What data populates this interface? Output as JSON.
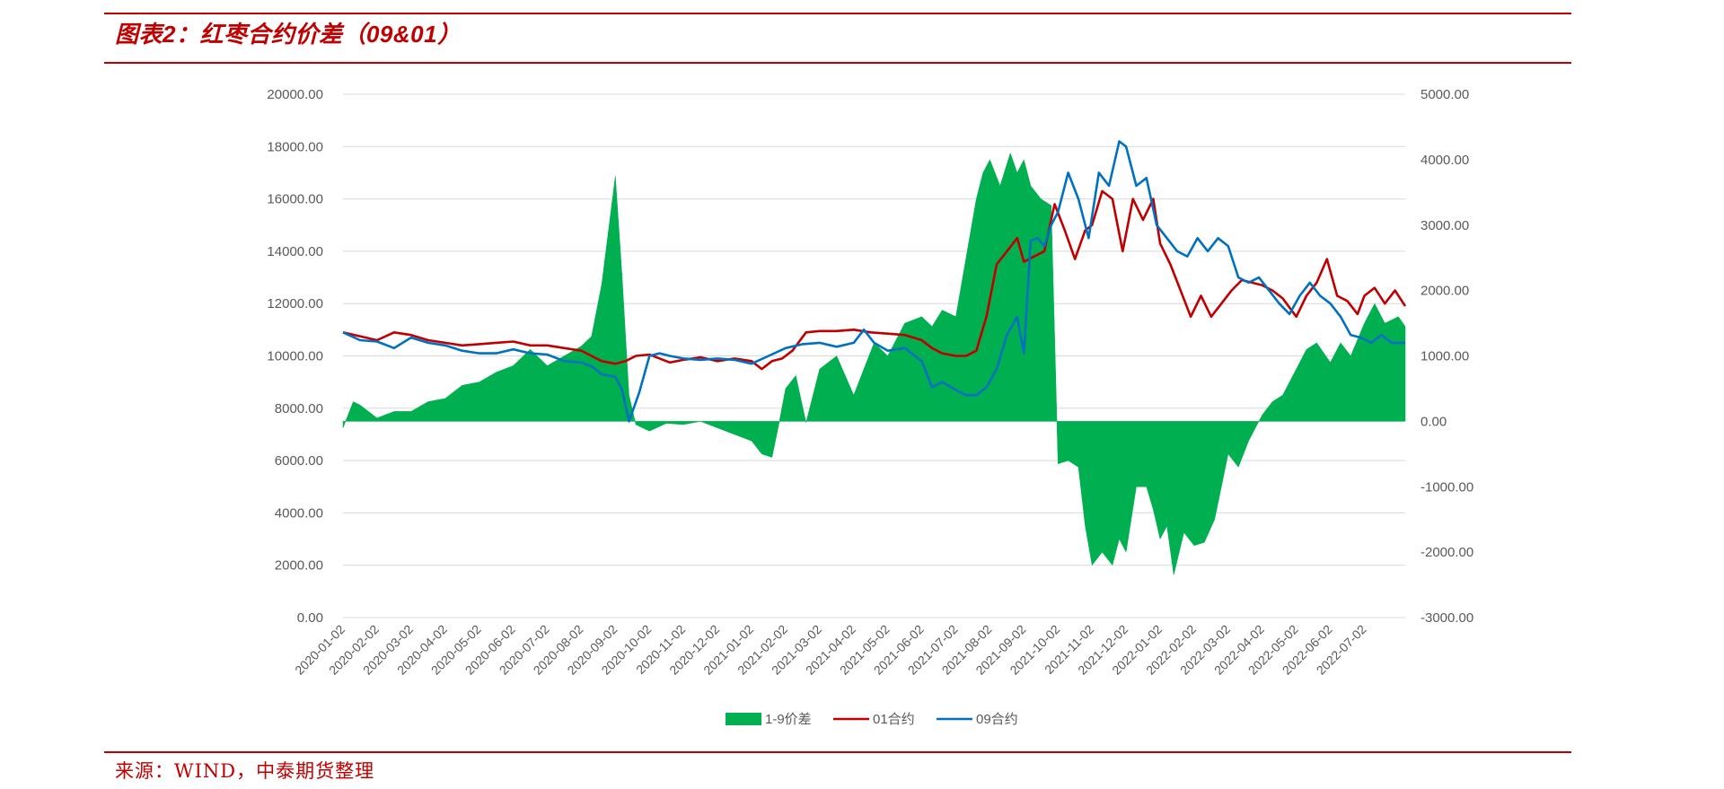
{
  "header": {
    "title": "图表2：红枣合约价差（09&01）"
  },
  "footer": {
    "source": "来源：WIND，中泰期货整理"
  },
  "colors": {
    "accent": "#c00000",
    "spread": "#00b050",
    "contract01": "#c00000",
    "contract09": "#0070c0",
    "grid": "#d9d9d9"
  },
  "chart_data": {
    "type": "line+area",
    "title": "",
    "left_axis": {
      "ylim": [
        0,
        20000
      ],
      "ticks": [
        "0.00",
        "2000.00",
        "4000.00",
        "6000.00",
        "8000.00",
        "10000.00",
        "12000.00",
        "14000.00",
        "16000.00",
        "18000.00",
        "20000.00"
      ]
    },
    "right_axis": {
      "ylim": [
        -3000,
        5000
      ],
      "ticks": [
        "-3000.00",
        "-2000.00",
        "-1000.00",
        "0.00",
        "1000.00",
        "2000.00",
        "3000.00",
        "4000.00",
        "5000.00"
      ]
    },
    "categories": [
      "2020-01-02",
      "2020-02-02",
      "2020-03-02",
      "2020-04-02",
      "2020-05-02",
      "2020-06-02",
      "2020-07-02",
      "2020-08-02",
      "2020-09-02",
      "2020-10-02",
      "2020-11-02",
      "2020-12-02",
      "2021-01-02",
      "2021-02-02",
      "2021-03-02",
      "2021-04-02",
      "2021-05-02",
      "2021-06-02",
      "2021-07-02",
      "2021-08-02",
      "2021-09-02",
      "2021-10-02",
      "2021-11-02",
      "2021-12-02",
      "2022-01-02",
      "2022-02-02",
      "2022-03-02",
      "2022-04-02",
      "2022-05-02",
      "2022-06-02",
      "2022-07-02"
    ],
    "legend_position": "bottom",
    "series": [
      {
        "name": "1-9价差",
        "type": "area",
        "axis": "right",
        "x": [
          0,
          0.3,
          0.5,
          1,
          1.5,
          2,
          2.5,
          3,
          3.5,
          4,
          4.5,
          5,
          5.5,
          6,
          6.5,
          7,
          7.3,
          7.6,
          8,
          8.2,
          8.4,
          8.6,
          8.8,
          9,
          9.5,
          10,
          10.5,
          11,
          11.5,
          12,
          12.3,
          12.6,
          12.8,
          13,
          13.3,
          13.6,
          14,
          14.5,
          15,
          15.3,
          15.6,
          16,
          16.5,
          17,
          17.3,
          17.6,
          18,
          18.3,
          18.6,
          18.8,
          19,
          19.3,
          19.6,
          19.8,
          20,
          20.2,
          20.5,
          20.8,
          21,
          21.3,
          21.6,
          21.8,
          22,
          22.3,
          22.6,
          22.8,
          23,
          23.3,
          23.6,
          23.8,
          24,
          24.2,
          24.4,
          24.7,
          25,
          25.3,
          25.6,
          26,
          26.3,
          26.6,
          27,
          27.3,
          27.6,
          28,
          28.3,
          28.6,
          29,
          29.3,
          29.6,
          30,
          30.3,
          30.6,
          31,
          31.2
        ],
        "values": [
          -100,
          300,
          250,
          50,
          150,
          150,
          300,
          350,
          550,
          600,
          750,
          850,
          1100,
          850,
          1000,
          1150,
          1300,
          2100,
          3750,
          2200,
          400,
          -50,
          -100,
          -150,
          -30,
          -50,
          0,
          -100,
          -200,
          -300,
          -500,
          -550,
          -50,
          500,
          700,
          -20,
          800,
          1000,
          400,
          800,
          1200,
          1000,
          1500,
          1600,
          1450,
          1700,
          1600,
          2500,
          3400,
          3800,
          4000,
          3600,
          4100,
          3800,
          4000,
          3600,
          3400,
          3300,
          -650,
          -600,
          -700,
          -1600,
          -2200,
          -2000,
          -2200,
          -1800,
          -2000,
          -1000,
          -1000,
          -1350,
          -1800,
          -1600,
          -2350,
          -1700,
          -1900,
          -1850,
          -1500,
          -500,
          -700,
          -300,
          100,
          300,
          400,
          800,
          1100,
          1200,
          900,
          1200,
          1000,
          1500,
          1800,
          1500,
          1600,
          1450
        ]
      },
      {
        "name": "01合约",
        "type": "line",
        "axis": "left",
        "x": [
          0,
          0.5,
          1,
          1.5,
          2,
          2.5,
          3,
          3.5,
          4,
          4.5,
          5,
          5.5,
          6,
          6.5,
          7,
          7.3,
          7.6,
          8,
          8.3,
          8.6,
          9,
          9.3,
          9.6,
          10,
          10.5,
          11,
          11.5,
          12,
          12.3,
          12.6,
          12.9,
          13.2,
          13.6,
          14,
          14.5,
          15,
          15.5,
          16,
          16.5,
          17,
          17.3,
          17.6,
          18,
          18.3,
          18.6,
          18.9,
          19.2,
          19.5,
          19.8,
          20,
          20.3,
          20.6,
          20.9,
          21.2,
          21.5,
          21.8,
          22,
          22.3,
          22.6,
          22.9,
          23.2,
          23.5,
          23.8,
          24,
          24.3,
          24.6,
          24.9,
          25.2,
          25.5,
          25.8,
          26.1,
          26.4,
          26.7,
          27,
          27.3,
          27.6,
          28,
          28.3,
          28.6,
          28.9,
          29.2,
          29.5,
          29.8,
          30,
          30.3,
          30.6,
          30.9,
          31.2
        ],
        "values": [
          10900,
          10750,
          10600,
          10900,
          10800,
          10600,
          10500,
          10400,
          10450,
          10500,
          10550,
          10400,
          10400,
          10300,
          10200,
          10000,
          9800,
          9700,
          9800,
          10000,
          10050,
          9900,
          9750,
          9850,
          9950,
          9800,
          9900,
          9800,
          9500,
          9800,
          9900,
          10200,
          10900,
          10950,
          10950,
          11000,
          10900,
          10850,
          10800,
          10600,
          10300,
          10100,
          10000,
          10000,
          10200,
          11500,
          13500,
          14000,
          14500,
          13600,
          13800,
          14000,
          15800,
          14800,
          13700,
          14800,
          15000,
          16300,
          16000,
          14000,
          16000,
          15200,
          16000,
          14300,
          13500,
          12500,
          11500,
          12300,
          11500,
          12000,
          12500,
          12900,
          12800,
          12700,
          12500,
          12200,
          11500,
          12300,
          12800,
          13700,
          12300,
          12100,
          11600,
          12300,
          12600,
          12000,
          12500,
          11900
        ]
      },
      {
        "name": "09合约",
        "type": "line",
        "axis": "left",
        "x": [
          0,
          0.5,
          1,
          1.5,
          2,
          2.5,
          3,
          3.5,
          4,
          4.5,
          5,
          5.5,
          6,
          6.5,
          7,
          7.3,
          7.6,
          8,
          8.2,
          8.4,
          8.7,
          9,
          9.3,
          9.6,
          10,
          10.5,
          11,
          11.5,
          12,
          12.5,
          13,
          13.5,
          14,
          14.5,
          15,
          15.3,
          15.6,
          16,
          16.5,
          17,
          17.3,
          17.6,
          18,
          18.3,
          18.6,
          18.9,
          19.2,
          19.5,
          19.8,
          20,
          20.2,
          20.4,
          20.6,
          20.8,
          21,
          21.3,
          21.6,
          21.9,
          22.2,
          22.5,
          22.8,
          23,
          23.3,
          23.6,
          23.9,
          24.2,
          24.5,
          24.8,
          25.1,
          25.4,
          25.7,
          26,
          26.3,
          26.6,
          26.9,
          27.2,
          27.5,
          27.8,
          28.1,
          28.4,
          28.7,
          29,
          29.3,
          29.6,
          29.9,
          30.2,
          30.5,
          30.8,
          31.2
        ],
        "values": [
          10900,
          10600,
          10550,
          10300,
          10700,
          10500,
          10400,
          10200,
          10100,
          10100,
          10250,
          10100,
          10050,
          9800,
          9750,
          9600,
          9300,
          9200,
          8700,
          7500,
          8600,
          10000,
          10100,
          10000,
          9900,
          9850,
          9900,
          9850,
          9700,
          10000,
          10300,
          10450,
          10500,
          10350,
          10500,
          11000,
          10500,
          10200,
          10300,
          9800,
          8800,
          9000,
          8700,
          8500,
          8500,
          8800,
          9500,
          10800,
          11500,
          10100,
          14400,
          14500,
          14200,
          15000,
          15500,
          17000,
          16000,
          14500,
          17000,
          16500,
          18200,
          18000,
          16500,
          16800,
          15000,
          14500,
          14000,
          13800,
          14500,
          14000,
          14500,
          14200,
          13000,
          12800,
          13000,
          12500,
          12000,
          11600,
          12300,
          12800,
          12300,
          12000,
          11500,
          10800,
          10700,
          10500,
          10800,
          10500,
          10500
        ]
      }
    ]
  }
}
